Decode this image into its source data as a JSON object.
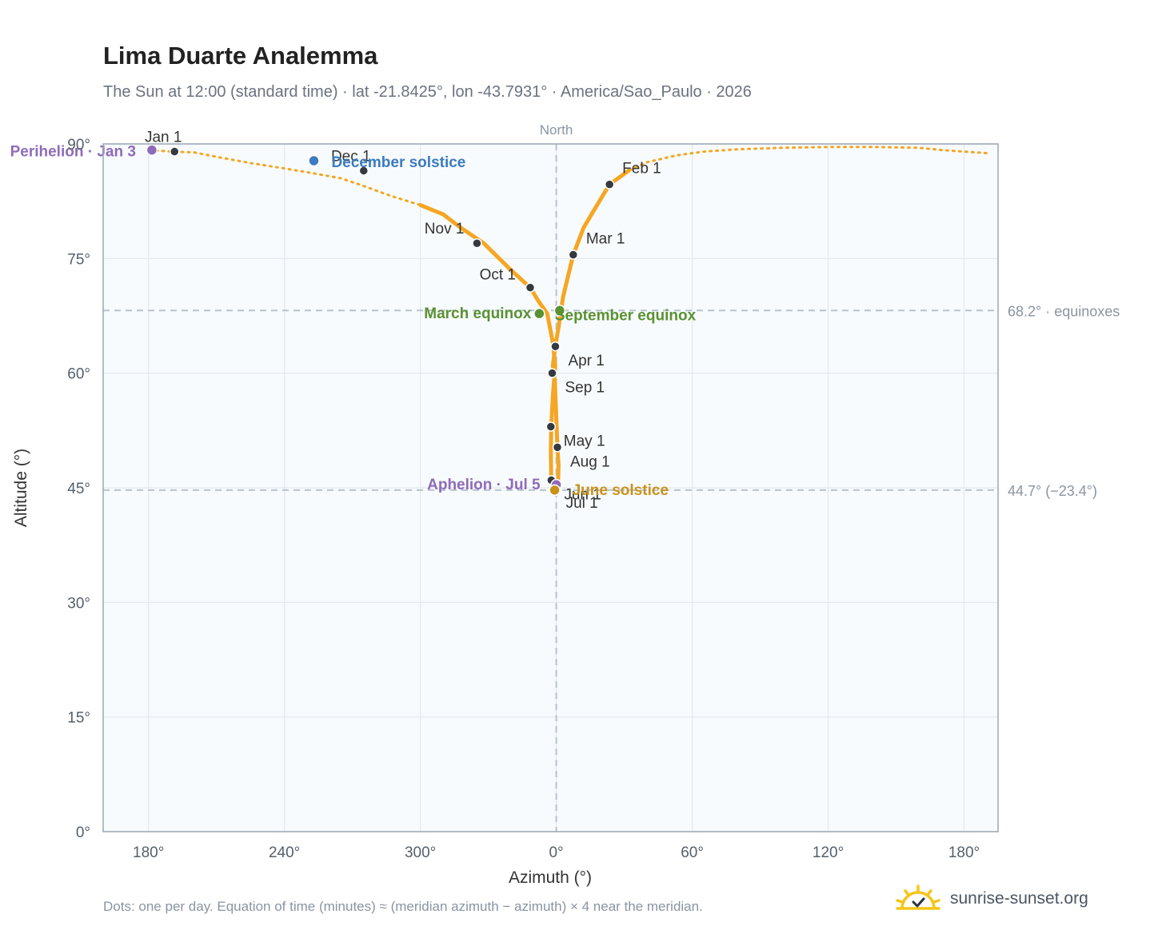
{
  "title": "Lima Duarte Analemma",
  "subtitle": "The Sun at 12:00 (standard time) · lat -21.8425°, lon -43.7931° · America/Sao_Paulo · 2026",
  "footnote": "Dots: one per day. Equation of time (minutes) ≈ (meridian azimuth − azimuth) × 4 near the meridian.",
  "brand": {
    "name": "sunrise-sunset.org",
    "icon": "sun-check-icon"
  },
  "colors": {
    "path": "#f5a623",
    "month_dot": "#343a40",
    "perihelion": "#8e6bb8",
    "december_solstice": "#3b7bbf",
    "equinox": "#5a9132",
    "june_solstice": "#c8921a",
    "plot_bg": "#f8fbfd",
    "grid": "#e3e8ee",
    "ref_line": "#b7c3cd"
  },
  "chart_data": {
    "type": "scatter",
    "xlabel": "Azimuth (°)",
    "ylabel": "Altitude (°)",
    "xlim": [
      160,
      555
    ],
    "ylim": [
      0,
      90
    ],
    "x_ticks": [
      {
        "value": 180,
        "label": "180°"
      },
      {
        "value": 240,
        "label": "240°"
      },
      {
        "value": 300,
        "label": "300°"
      },
      {
        "value": 360,
        "label": "0°"
      },
      {
        "value": 420,
        "label": "60°"
      },
      {
        "value": 480,
        "label": "120°"
      },
      {
        "value": 540,
        "label": "180°"
      }
    ],
    "y_ticks": [
      {
        "value": 0,
        "label": "0°"
      },
      {
        "value": 15,
        "label": "15°"
      },
      {
        "value": 30,
        "label": "30°"
      },
      {
        "value": 45,
        "label": "45°"
      },
      {
        "value": 60,
        "label": "60°"
      },
      {
        "value": 75,
        "label": "75°"
      },
      {
        "value": 90,
        "label": "90°"
      }
    ],
    "grid": true,
    "meridian": {
      "x": 360,
      "label": "North"
    },
    "reference_lines": [
      {
        "y": 68.2,
        "label": "68.2° · equinoxes"
      },
      {
        "y": 44.7,
        "label": "44.7° (−23.4°)"
      }
    ],
    "path": [
      [
        180.5,
        89.2
      ],
      [
        190,
        89.0
      ],
      [
        200,
        88.9
      ],
      [
        212,
        88.2
      ],
      [
        225,
        87.5
      ],
      [
        240,
        86.8
      ],
      [
        252,
        86.2
      ],
      [
        265,
        85.5
      ],
      [
        275,
        84.5
      ],
      [
        287,
        83.2
      ],
      [
        300,
        82.0
      ],
      [
        310,
        80.8
      ],
      [
        318,
        79.0
      ],
      [
        328,
        77.0
      ],
      [
        340,
        73.5
      ],
      [
        348.5,
        71.2
      ],
      [
        352,
        69.5
      ],
      [
        356,
        67.8
      ],
      [
        358.5,
        64.0
      ],
      [
        359.5,
        61.0
      ],
      [
        358.5,
        57.0
      ],
      [
        357.8,
        53.0
      ],
      [
        357.6,
        49.5
      ],
      [
        357.8,
        46.2
      ],
      [
        359.3,
        44.8
      ],
      [
        360.8,
        45.5
      ],
      [
        361,
        48.0
      ],
      [
        360.5,
        50.3
      ],
      [
        359.9,
        55.0
      ],
      [
        359.4,
        58.5
      ],
      [
        359,
        60.0
      ],
      [
        358.5,
        61.0
      ],
      [
        359.6,
        63.5
      ],
      [
        361,
        66.0
      ],
      [
        363,
        70.0
      ],
      [
        367.5,
        75.5
      ],
      [
        372,
        79.0
      ],
      [
        378,
        82.0
      ],
      [
        383.5,
        84.7
      ],
      [
        392,
        86.5
      ],
      [
        400,
        87.6
      ],
      [
        413,
        88.5
      ],
      [
        425,
        89.0
      ],
      [
        440,
        89.3
      ],
      [
        460,
        89.5
      ],
      [
        480,
        89.6
      ],
      [
        500,
        89.6
      ],
      [
        520,
        89.5
      ],
      [
        530,
        89.2
      ],
      [
        540,
        89.0
      ],
      [
        550,
        88.8
      ]
    ],
    "month_points": [
      {
        "label": "Jan 1",
        "az": 191.5,
        "alt": 89.0
      },
      {
        "label": "Feb 1",
        "az": 383.5,
        "alt": 84.7
      },
      {
        "label": "Mar 1",
        "az": 367.5,
        "alt": 75.5
      },
      {
        "label": "Apr 1",
        "az": 359.6,
        "alt": 63.5
      },
      {
        "label": "May 1",
        "az": 357.6,
        "alt": 53.0
      },
      {
        "label": "Jun 1",
        "az": 357.8,
        "alt": 46.0
      },
      {
        "label": "Jul 1",
        "az": 359.3,
        "alt": 44.7
      },
      {
        "label": "Aug 1",
        "az": 360.5,
        "alt": 50.3
      },
      {
        "label": "Sep 1",
        "az": 358.2,
        "alt": 60.0
      },
      {
        "label": "Oct 1",
        "az": 348.5,
        "alt": 71.2
      },
      {
        "label": "Nov 1",
        "az": 325.0,
        "alt": 77.0
      },
      {
        "label": "Dec 1",
        "az": 275.0,
        "alt": 86.5
      }
    ],
    "events": [
      {
        "label": "Perihelion · Jan 3",
        "az": 181.5,
        "alt": 89.2,
        "kind": "perihelion"
      },
      {
        "label": "December solstice",
        "az": 253.0,
        "alt": 87.8,
        "kind": "december_solstice"
      },
      {
        "label": "March equinox",
        "az": 352.5,
        "alt": 67.8,
        "kind": "equinox"
      },
      {
        "label": "September equinox",
        "az": 361.5,
        "alt": 68.2,
        "kind": "equinox"
      },
      {
        "label": "Aphelion · Jul 5",
        "az": 360.0,
        "alt": 45.4,
        "kind": "perihelion"
      },
      {
        "label": "June solstice",
        "az": 359.3,
        "alt": 44.7,
        "kind": "june_solstice"
      }
    ]
  }
}
